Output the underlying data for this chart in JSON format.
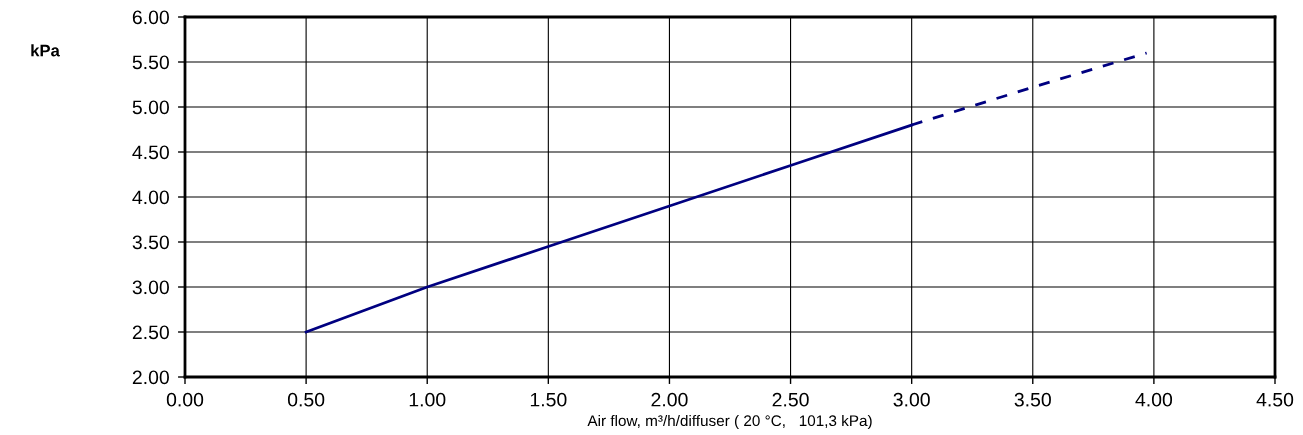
{
  "chart_data": {
    "type": "line",
    "xlabel": "Air flow, m³/h/diffuser ( 20 °C,   101,3 kPa)",
    "ylabel": "kPa",
    "series": [
      {
        "color": "#000080",
        "line_style": "solid",
        "x": [
          0.5,
          1.0,
          1.5,
          2.0,
          2.5,
          3.0
        ],
        "values": [
          2.5,
          3.0,
          3.45,
          3.9,
          4.35,
          4.8
        ]
      },
      {
        "color": "#000080",
        "line_style": "dashed",
        "x": [
          3.0,
          3.5,
          3.97
        ],
        "values": [
          4.8,
          5.22,
          5.6
        ]
      }
    ],
    "xlim": [
      0,
      4.5
    ],
    "ylim": [
      2,
      6
    ],
    "xticks": [
      {
        "value": 0,
        "label": "0.00"
      },
      {
        "value": 0.5,
        "label": "0.50"
      },
      {
        "value": 1,
        "label": "1.00"
      },
      {
        "value": 1.5,
        "label": "1.50"
      },
      {
        "value": 2,
        "label": "2.00"
      },
      {
        "value": 2.5,
        "label": "2.50"
      },
      {
        "value": 3,
        "label": "3.00"
      },
      {
        "value": 3.5,
        "label": "3.50"
      },
      {
        "value": 4,
        "label": "4.00"
      },
      {
        "value": 4.5,
        "label": "4.50"
      }
    ],
    "yticks": [
      {
        "value": 2,
        "label": "2.00"
      },
      {
        "value": 2.5,
        "label": "2.50"
      },
      {
        "value": 3,
        "label": "3.00"
      },
      {
        "value": 3.5,
        "label": "3.50"
      },
      {
        "value": 4,
        "label": "4.00"
      },
      {
        "value": 4.5,
        "label": "4.50"
      },
      {
        "value": 5,
        "label": "5.00"
      },
      {
        "value": 5.5,
        "label": "5.50"
      },
      {
        "value": 6,
        "label": "6.00"
      }
    ],
    "grid": true,
    "marker": "none"
  }
}
